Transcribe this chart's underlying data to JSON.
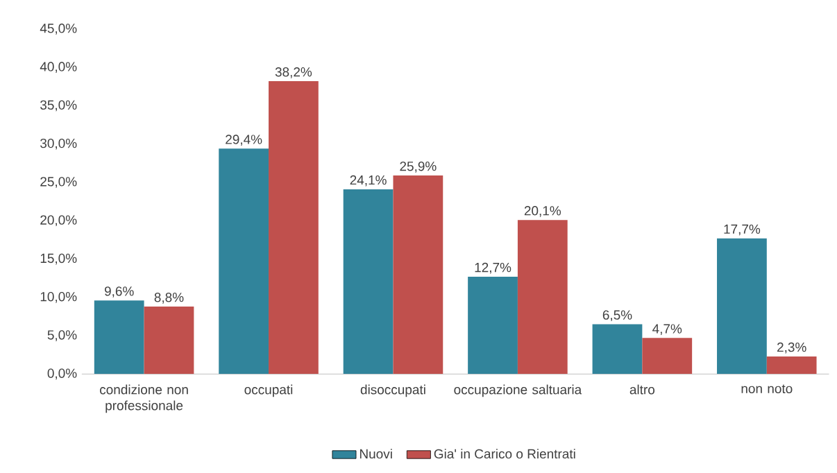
{
  "chart_data": {
    "type": "bar",
    "categories": [
      "condizione non professionale",
      "occupati",
      "disoccupati",
      "occupazione saltuaria",
      "altro",
      "non noto"
    ],
    "series": [
      {
        "name": "Nuovi",
        "color": "#31849b",
        "values": [
          9.6,
          29.4,
          24.1,
          12.7,
          6.5,
          17.7
        ],
        "value_labels": [
          "9,6%",
          "29,4%",
          "24,1%",
          "12,7%",
          "6,5%",
          "17,7%"
        ]
      },
      {
        "name": "Gia' in Carico o Rientrati",
        "color": "#c0504d",
        "values": [
          8.8,
          38.2,
          25.9,
          20.1,
          4.7,
          2.3
        ],
        "value_labels": [
          "8,8%",
          "38,2%",
          "25,9%",
          "20,1%",
          "4,7%",
          "2,3%"
        ]
      }
    ],
    "ylim": [
      0,
      45
    ],
    "yticks": [
      {
        "value": 0,
        "label": "0,0%"
      },
      {
        "value": 5,
        "label": "5,0%"
      },
      {
        "value": 10,
        "label": "10,0%"
      },
      {
        "value": 15,
        "label": "15,0%"
      },
      {
        "value": 20,
        "label": "20,0%"
      },
      {
        "value": 25,
        "label": "25,0%"
      },
      {
        "value": 30,
        "label": "30,0%"
      },
      {
        "value": 35,
        "label": "35,0%"
      },
      {
        "value": 40,
        "label": "40,0%"
      },
      {
        "value": 45,
        "label": "45,0%"
      }
    ],
    "grid": false,
    "legend": "bottom"
  }
}
